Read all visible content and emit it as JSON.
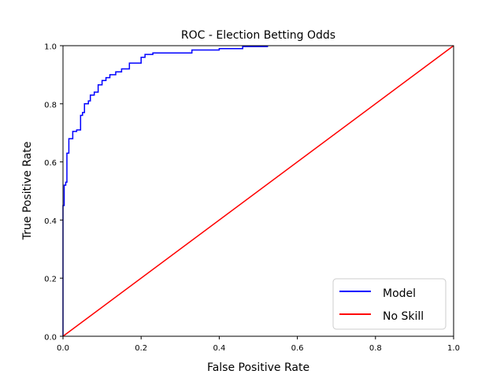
{
  "chart_data": {
    "type": "line",
    "title": "ROC - Election Betting Odds",
    "xlabel": "False Positive Rate",
    "ylabel": "True Positive Rate",
    "xlim": [
      0.0,
      1.0
    ],
    "ylim": [
      0.0,
      1.0
    ],
    "xticks": [
      "0.0",
      "0.2",
      "0.4",
      "0.6",
      "0.8",
      "1.0"
    ],
    "yticks": [
      "0.0",
      "0.2",
      "0.4",
      "0.6",
      "0.8",
      "1.0"
    ],
    "grid": false,
    "legend_position": "lower-right",
    "series": [
      {
        "name": "Model",
        "color": "#0000ff",
        "x": [
          0.0,
          0.0,
          0.003,
          0.003,
          0.007,
          0.007,
          0.01,
          0.01,
          0.015,
          0.015,
          0.025,
          0.025,
          0.035,
          0.035,
          0.045,
          0.045,
          0.05,
          0.05,
          0.055,
          0.055,
          0.065,
          0.065,
          0.07,
          0.07,
          0.08,
          0.08,
          0.09,
          0.09,
          0.1,
          0.1,
          0.11,
          0.11,
          0.12,
          0.12,
          0.135,
          0.135,
          0.15,
          0.15,
          0.17,
          0.17,
          0.2,
          0.2,
          0.21,
          0.21,
          0.23,
          0.23,
          0.33,
          0.33,
          0.4,
          0.4,
          0.46,
          0.46,
          0.525
        ],
        "y": [
          0.0,
          0.45,
          0.45,
          0.52,
          0.52,
          0.53,
          0.53,
          0.63,
          0.63,
          0.68,
          0.68,
          0.705,
          0.705,
          0.71,
          0.71,
          0.76,
          0.76,
          0.77,
          0.77,
          0.8,
          0.8,
          0.81,
          0.81,
          0.83,
          0.83,
          0.84,
          0.84,
          0.865,
          0.865,
          0.88,
          0.88,
          0.89,
          0.89,
          0.9,
          0.9,
          0.91,
          0.91,
          0.92,
          0.92,
          0.94,
          0.94,
          0.96,
          0.96,
          0.97,
          0.97,
          0.975,
          0.975,
          0.985,
          0.985,
          0.99,
          0.99,
          0.997,
          0.997
        ]
      },
      {
        "name": "No Skill",
        "color": "#ff0000",
        "x": [
          0.0,
          1.0
        ],
        "y": [
          0.0,
          1.0
        ]
      }
    ]
  }
}
